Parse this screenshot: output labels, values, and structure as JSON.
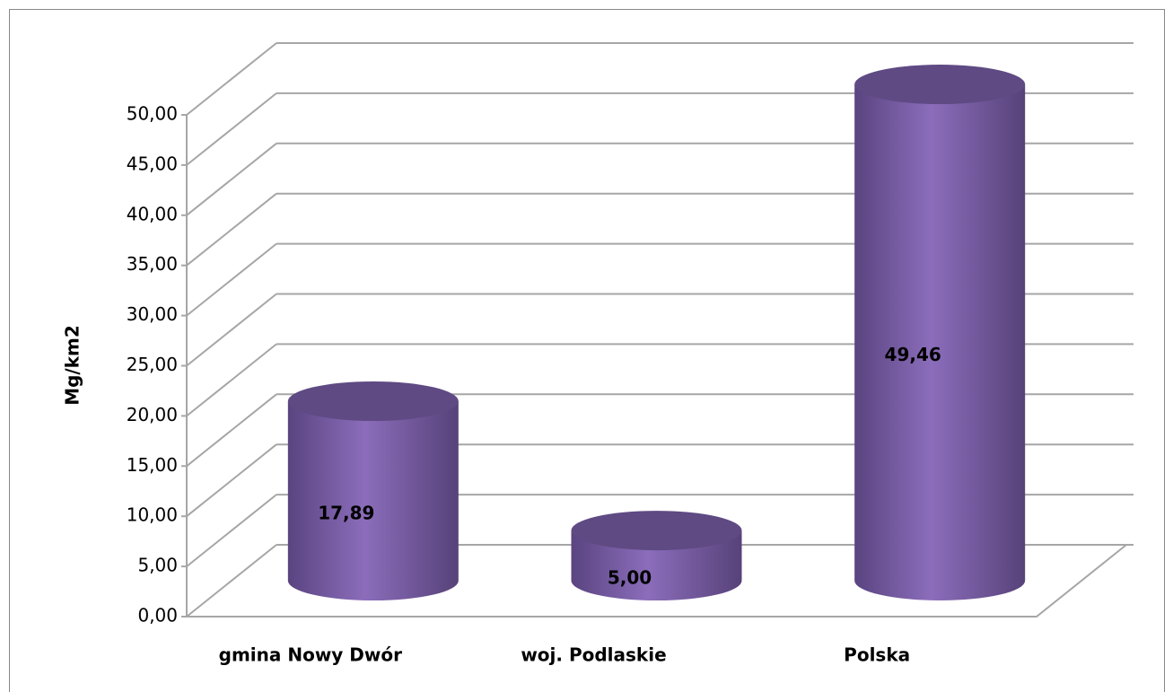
{
  "chart_data": {
    "type": "bar3d",
    "y_label": "Mg/km2",
    "categories": [
      "gmina Nowy Dwór",
      "woj. Podlaskie",
      "Polska"
    ],
    "values": [
      17.89,
      5,
      49.46
    ],
    "value_labels": [
      "17,89",
      "5,00",
      "49,46"
    ],
    "color": "#7a5ea6",
    "ylim": [
      0,
      50
    ],
    "yticks": [
      {
        "value": 0,
        "label": "0,00"
      },
      {
        "value": 5,
        "label": "5,00"
      },
      {
        "value": 10,
        "label": "10,00"
      },
      {
        "value": 15,
        "label": "15,00"
      },
      {
        "value": 20,
        "label": "20,00"
      },
      {
        "value": 25,
        "label": "25,00"
      },
      {
        "value": 30,
        "label": "30,00"
      },
      {
        "value": 35,
        "label": "35,00"
      },
      {
        "value": 40,
        "label": "40,00"
      },
      {
        "value": 45,
        "label": "45,00"
      },
      {
        "value": 50,
        "label": "50,00"
      }
    ],
    "grid": true
  }
}
